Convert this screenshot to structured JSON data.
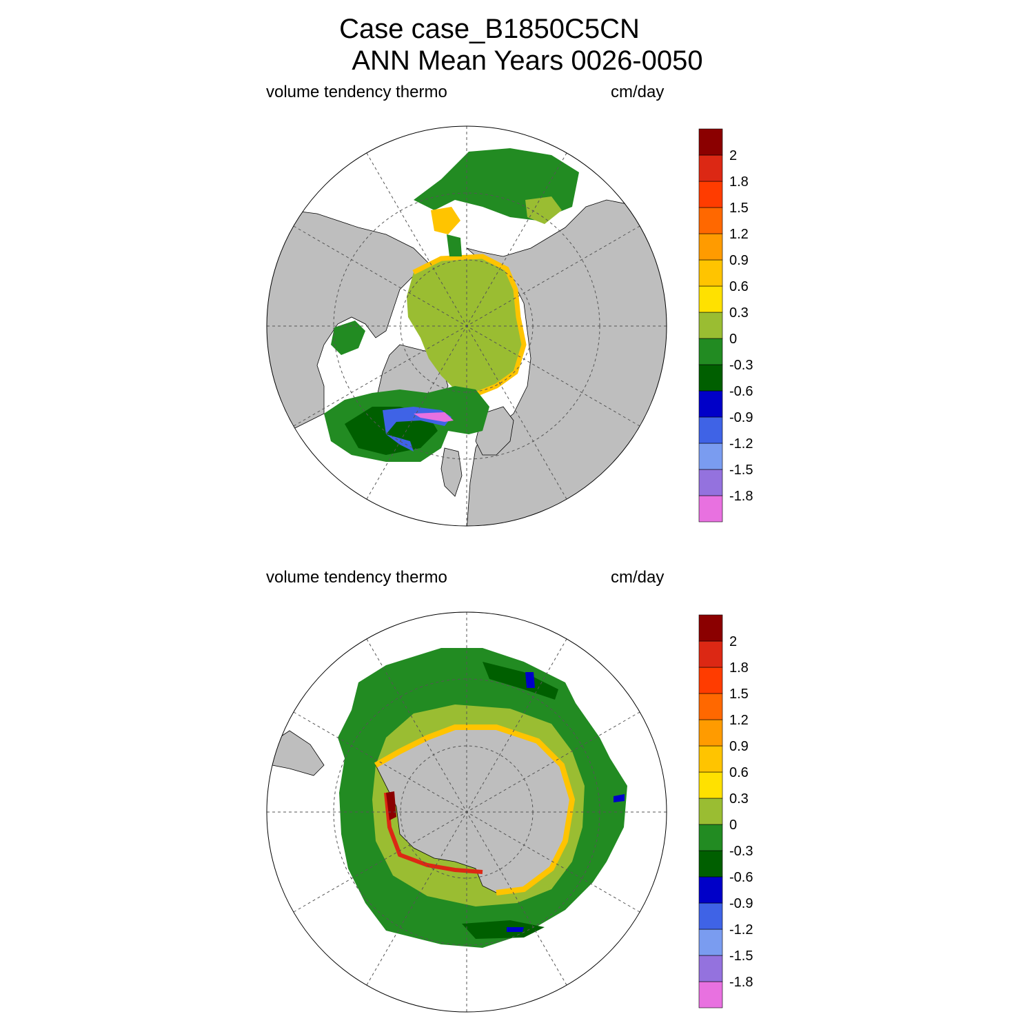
{
  "titles": {
    "line1": "Case case_B1850C5CN",
    "line2": "ANN Mean    Years 0026-0050"
  },
  "panels": [
    {
      "name": "north",
      "variable": "volume tendency thermo",
      "units": "cm/day"
    },
    {
      "name": "south",
      "variable": "volume tendency thermo",
      "units": "cm/day"
    }
  ],
  "colorbar": {
    "colors": [
      "#e871e0",
      "#9472de",
      "#7a9cf0",
      "#3f63e6",
      "#0000c8",
      "#005f00",
      "#228b22",
      "#9abd32",
      "#ffe100",
      "#ffc400",
      "#ff9b00",
      "#ff6800",
      "#ff3c00",
      "#dc2814",
      "#8b0000"
    ],
    "labels": [
      "-1.8",
      "-1.5",
      "-1.2",
      "-0.9",
      "-0.6",
      "-0.3",
      "0",
      "0.3",
      "0.6",
      "0.9",
      "1.2",
      "1.5",
      "1.8",
      "2"
    ]
  },
  "map_colors": {
    "land": "#bebebe",
    "coast": "#000000",
    "grid": "#555555"
  }
}
